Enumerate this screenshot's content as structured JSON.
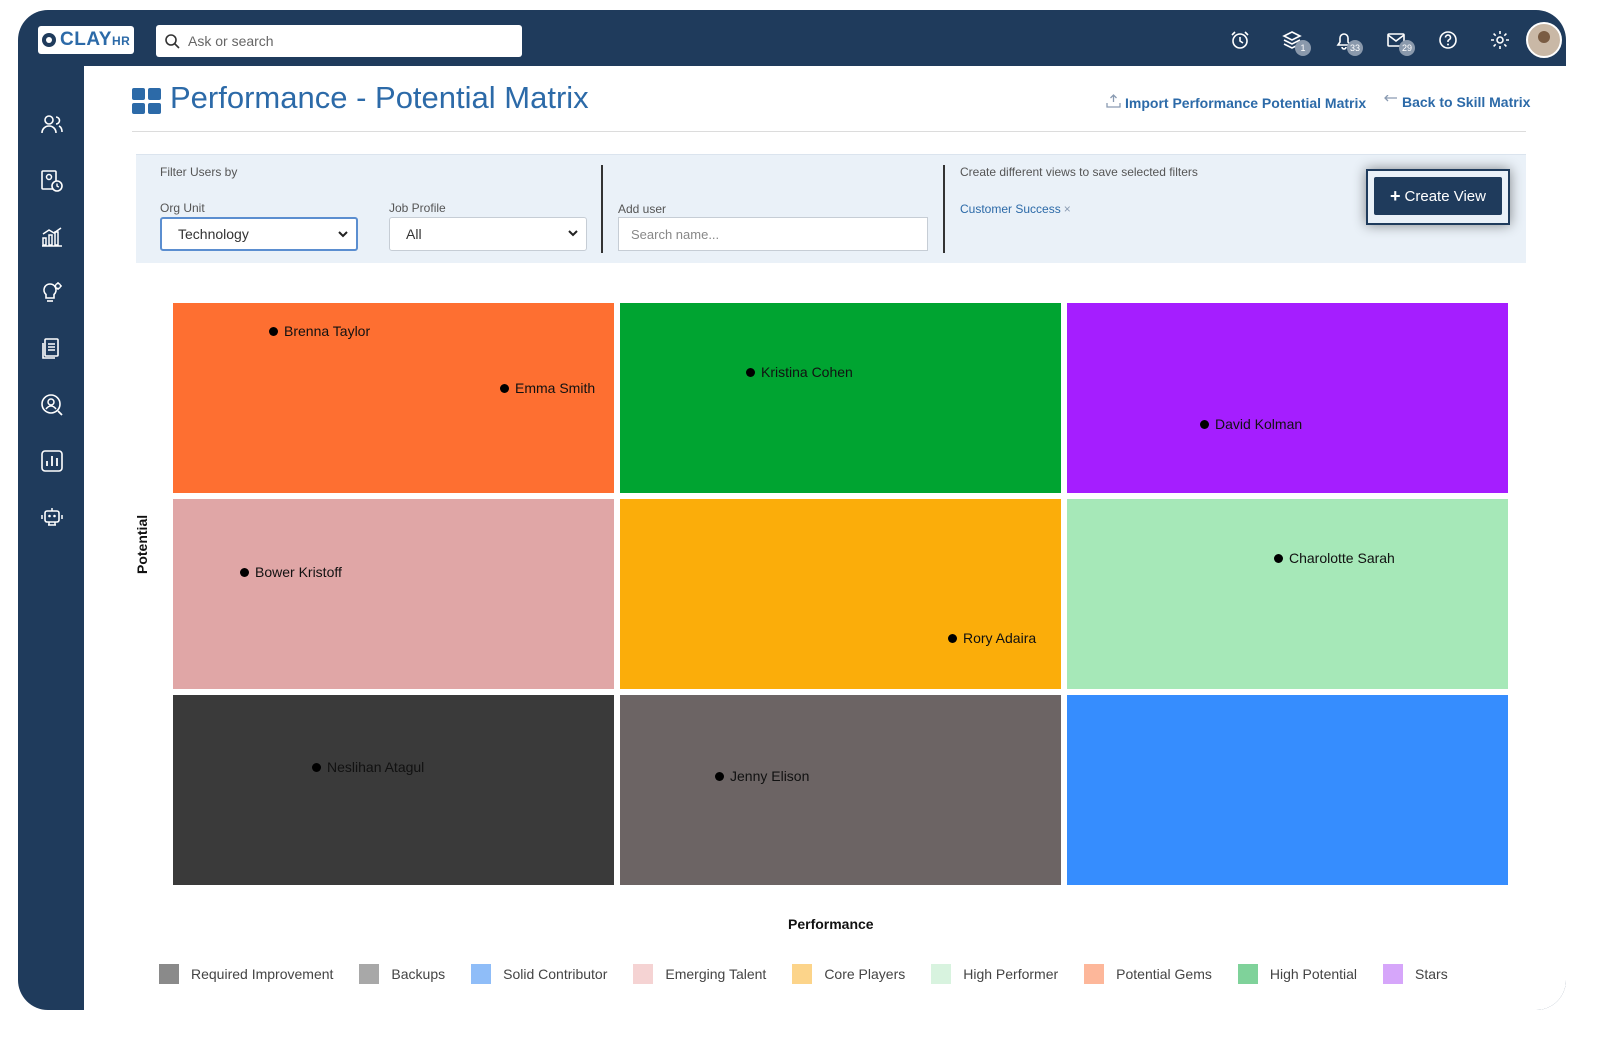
{
  "app": {
    "logo_text": "CLAY",
    "logo_sub": "HR"
  },
  "search": {
    "placeholder": "Ask or search"
  },
  "top_icons": [
    {
      "icon": "alarm-clock-icon"
    },
    {
      "icon": "layers-icon",
      "badge": "1"
    },
    {
      "icon": "bell-icon",
      "badge": "33"
    },
    {
      "icon": "mail-icon",
      "badge": "29"
    },
    {
      "icon": "help-icon"
    },
    {
      "icon": "gear-icon"
    }
  ],
  "sidebar": {
    "items": [
      {
        "icon": "people-icon"
      },
      {
        "icon": "person-clock-icon"
      },
      {
        "icon": "bar-chart-icon"
      },
      {
        "icon": "lightbulb-gear-icon"
      },
      {
        "icon": "documents-icon"
      },
      {
        "icon": "person-search-icon"
      },
      {
        "icon": "report-icon"
      },
      {
        "icon": "robot-icon"
      }
    ]
  },
  "page": {
    "title": "Performance - Potential Matrix",
    "import_link": "Import Performance Potential Matrix",
    "back_link": "Back to Skill Matrix"
  },
  "filters": {
    "heading": "Filter Users by",
    "org_unit_label": "Org Unit",
    "org_unit_value": "Technology",
    "job_profile_label": "Job Profile",
    "job_profile_value": "All",
    "add_user_label": "Add user",
    "add_user_placeholder": "Search name...",
    "views_heading": "Create different views to save selected filters",
    "saved_view_chip": "Customer Success",
    "chip_close": "×",
    "create_view_label": "Create View"
  },
  "matrix": {
    "y_label": "Potential",
    "x_label": "Performance",
    "colors": {
      "potential_gems": "#fe6f31",
      "high_potential": "#00a431",
      "stars": "#a51eff",
      "emerging_talent": "#e0a6a6",
      "core_players": "#fbad0a",
      "high_performer": "#a6e8b8",
      "required_improvement": "#3a3a3a",
      "backups": "#6c6464",
      "solid_contributor": "#368dfe"
    },
    "people": {
      "brenna_taylor": "Brenna Taylor",
      "emma_smith": "Emma Smith",
      "kristina_cohen": "Kristina Cohen",
      "david_kolman": "David Kolman",
      "bower_kristoff": "Bower Kristoff",
      "rory_adaira": "Rory Adaira",
      "charolotte_sarah": "Charolotte Sarah",
      "neslihan_atagul": "Neslihan Atagul",
      "jenny_elison": "Jenny Elison"
    }
  },
  "legend": [
    {
      "label": "Required Improvement",
      "color": "#8a8a8a"
    },
    {
      "label": "Backups",
      "color": "#a8a8a8"
    },
    {
      "label": "Solid Contributor",
      "color": "#8fbdf8"
    },
    {
      "label": "Emerging Talent",
      "color": "#f5d3d3"
    },
    {
      "label": "Core Players",
      "color": "#fcd48a"
    },
    {
      "label": "High Performer",
      "color": "#d8f3df"
    },
    {
      "label": "Potential Gems",
      "color": "#fdb79a"
    },
    {
      "label": "High Potential",
      "color": "#7fd29a"
    },
    {
      "label": "Stars",
      "color": "#d6a6fa"
    }
  ]
}
